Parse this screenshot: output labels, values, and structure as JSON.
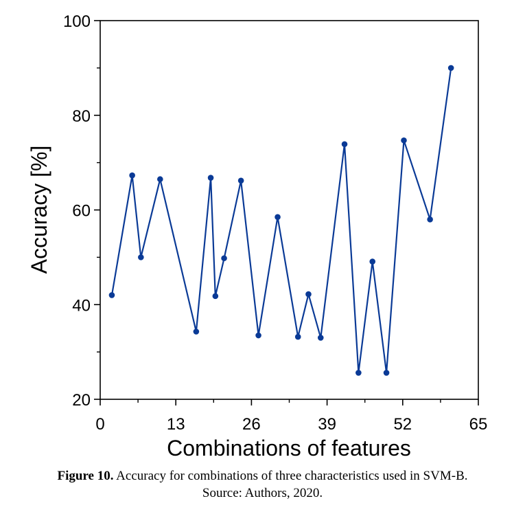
{
  "chart_data": {
    "type": "line",
    "xlabel": "Combinations of features",
    "ylabel": "Accuracy [%]",
    "xlim": [
      0,
      65
    ],
    "ylim": [
      20,
      100
    ],
    "xticks": [
      0,
      13,
      26,
      39,
      52,
      65
    ],
    "yticks": [
      20,
      40,
      60,
      80,
      100
    ],
    "grid": false,
    "line_color": "#0a3a96",
    "series": [
      {
        "x": [
          2,
          5.5,
          7,
          10.3,
          16.5,
          19,
          19.8,
          21.3,
          24.2,
          27.2,
          30.5,
          34,
          35.8,
          37.9,
          42,
          44.4,
          46.8,
          49.2,
          52.2,
          56.7,
          60.3
        ],
        "y": [
          42,
          67.3,
          50,
          66.5,
          34.3,
          66.8,
          41.8,
          49.8,
          66.2,
          33.5,
          58.5,
          33.2,
          42.2,
          33,
          73.9,
          25.6,
          49.1,
          25.6,
          74.7,
          58,
          90
        ]
      }
    ]
  },
  "caption": {
    "label": "Figure 10.",
    "text": " Accuracy for combinations of three characteristics used in SVM-B.",
    "source": "Source: Authors, 2020."
  }
}
